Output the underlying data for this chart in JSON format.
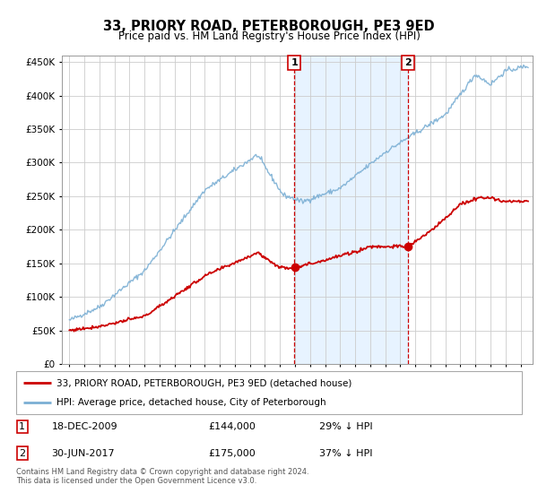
{
  "title": "33, PRIORY ROAD, PETERBOROUGH, PE3 9ED",
  "subtitle": "Price paid vs. HM Land Registry's House Price Index (HPI)",
  "hpi_color": "#7bafd4",
  "price_color": "#cc0000",
  "purchase1_year": 2009.96,
  "purchase1_price_val": 144000,
  "purchase1_date": "18-DEC-2009",
  "purchase1_price": "£144,000",
  "purchase1_pct": "29% ↓ HPI",
  "purchase2_year": 2017.5,
  "purchase2_price_val": 175000,
  "purchase2_date": "30-JUN-2017",
  "purchase2_price": "£175,000",
  "purchase2_pct": "37% ↓ HPI",
  "legend_label1": "33, PRIORY ROAD, PETERBOROUGH, PE3 9ED (detached house)",
  "legend_label2": "HPI: Average price, detached house, City of Peterborough",
  "footer": "Contains HM Land Registry data © Crown copyright and database right 2024.\nThis data is licensed under the Open Government Licence v3.0.",
  "yticks": [
    0,
    50000,
    100000,
    150000,
    200000,
    250000,
    300000,
    350000,
    400000,
    450000
  ],
  "ymax": 460000,
  "xmin": 1994.5,
  "xmax": 2025.8,
  "shaded_color": "#ddeeff",
  "bg_color": "#ffffff",
  "grid_color": "#cccccc"
}
